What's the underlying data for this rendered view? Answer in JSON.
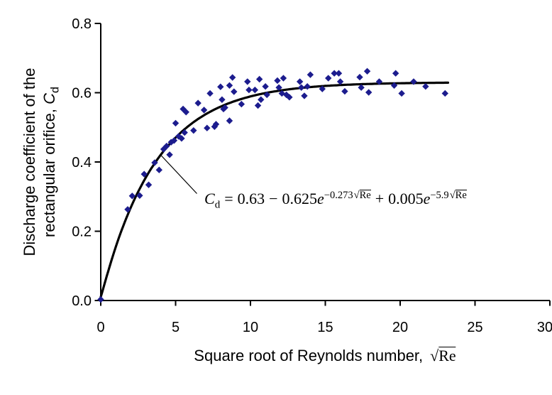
{
  "chart_data": {
    "type": "scatter",
    "title": "",
    "xlabel_text": "Square root of Reynolds number,",
    "xlabel_radical": "√",
    "xlabel_radicand": "Re",
    "ylabel_line1": "Discharge coefficient of the",
    "ylabel_line2_prefix": "rectangular orifice, ",
    "ylabel_symbol": "C",
    "ylabel_symbol_sub": "d",
    "xlim": [
      0,
      30
    ],
    "ylim": [
      0.0,
      0.8
    ],
    "x_tick_values": [
      0,
      5,
      10,
      15,
      20,
      25,
      30
    ],
    "x_tick_labels": [
      "0",
      "5",
      "10",
      "15",
      "20",
      "25",
      "30"
    ],
    "y_tick_values": [
      0.0,
      0.2,
      0.4,
      0.6,
      0.8
    ],
    "y_tick_labels": [
      "0.0",
      "0.2",
      "0.4",
      "0.6",
      "0.8"
    ],
    "grid": false,
    "legend": "none",
    "marker": {
      "shape": "diamond",
      "color": "#1c1c8e",
      "size": 9.4
    },
    "fit": {
      "formula_plain": "Cd = 0.63 - 0.625*exp(-0.273*sqrt(Re)) + 0.005*exp(-5.9*sqrt(Re))",
      "a": 0.63,
      "b": 0.625,
      "k1": 0.273,
      "c": 0.005,
      "k2": 5.9,
      "x_start": 0,
      "x_end": 23.2,
      "color": "#000000",
      "stroke_width": 3.2
    },
    "equation": {
      "sym": "C",
      "sym_sub": "d",
      "rel": "=",
      "const1": "0.63",
      "minus": "−",
      "coef2": "0.625",
      "e": "e",
      "exp2": "−0.273",
      "plus": "+",
      "coef3": "0.005",
      "exp3": "−5.9",
      "radical": "√",
      "radicand": "Re",
      "leader_points_to_x": 4.0
    },
    "points": [
      [
        0.0,
        0.003
      ],
      [
        1.8,
        0.263
      ],
      [
        2.1,
        0.302
      ],
      [
        2.6,
        0.303
      ],
      [
        2.9,
        0.365
      ],
      [
        3.2,
        0.334
      ],
      [
        3.6,
        0.398
      ],
      [
        3.9,
        0.377
      ],
      [
        4.2,
        0.437
      ],
      [
        4.4,
        0.446
      ],
      [
        4.6,
        0.421
      ],
      [
        4.7,
        0.457
      ],
      [
        4.9,
        0.462
      ],
      [
        5.0,
        0.512
      ],
      [
        5.2,
        0.474
      ],
      [
        5.4,
        0.468
      ],
      [
        5.5,
        0.553
      ],
      [
        5.7,
        0.544
      ],
      [
        5.6,
        0.485
      ],
      [
        6.2,
        0.491
      ],
      [
        6.5,
        0.57
      ],
      [
        6.9,
        0.55
      ],
      [
        7.1,
        0.498
      ],
      [
        7.3,
        0.598
      ],
      [
        7.6,
        0.502
      ],
      [
        7.7,
        0.509
      ],
      [
        8.0,
        0.617
      ],
      [
        8.1,
        0.58
      ],
      [
        8.2,
        0.553
      ],
      [
        8.3,
        0.557
      ],
      [
        8.6,
        0.621
      ],
      [
        8.6,
        0.519
      ],
      [
        8.8,
        0.644
      ],
      [
        8.9,
        0.603
      ],
      [
        9.4,
        0.567
      ],
      [
        9.8,
        0.632
      ],
      [
        9.9,
        0.608
      ],
      [
        10.3,
        0.608
      ],
      [
        10.5,
        0.563
      ],
      [
        10.6,
        0.639
      ],
      [
        10.7,
        0.58
      ],
      [
        11.0,
        0.618
      ],
      [
        11.1,
        0.594
      ],
      [
        11.8,
        0.635
      ],
      [
        11.9,
        0.615
      ],
      [
        12.2,
        0.642
      ],
      [
        12.1,
        0.598
      ],
      [
        12.4,
        0.594
      ],
      [
        12.6,
        0.587
      ],
      [
        13.3,
        0.632
      ],
      [
        13.4,
        0.615
      ],
      [
        13.6,
        0.591
      ],
      [
        13.8,
        0.618
      ],
      [
        14.0,
        0.652
      ],
      [
        14.8,
        0.611
      ],
      [
        15.2,
        0.642
      ],
      [
        15.6,
        0.656
      ],
      [
        15.9,
        0.656
      ],
      [
        16.0,
        0.632
      ],
      [
        16.3,
        0.604
      ],
      [
        17.3,
        0.645
      ],
      [
        17.4,
        0.615
      ],
      [
        17.8,
        0.662
      ],
      [
        17.9,
        0.601
      ],
      [
        18.6,
        0.632
      ],
      [
        19.6,
        0.621
      ],
      [
        19.7,
        0.656
      ],
      [
        20.1,
        0.598
      ],
      [
        20.9,
        0.632
      ],
      [
        21.7,
        0.618
      ],
      [
        23.0,
        0.598
      ]
    ],
    "colors": {
      "axis": "#000000",
      "text": "#000000",
      "curve": "#000000",
      "marker": "#1c1c8e"
    }
  }
}
